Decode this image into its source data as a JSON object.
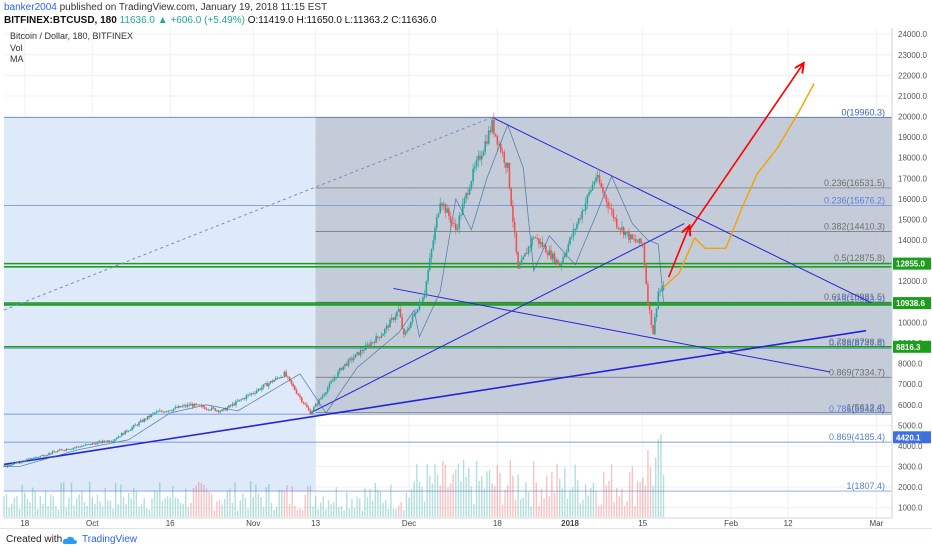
{
  "header": {
    "author": "banker2004",
    "published": "published on TradingView.com, January 19, 2018 11:15 EST",
    "symbol": "BITFINEX:BTCUSD, 180",
    "last": "11636.0",
    "change": "▲ +606.0 (+5.49%)",
    "o": "O:11419.0",
    "h": "H:11650.0",
    "l": "L:11363.2",
    "c": "C:11636.0"
  },
  "footer": {
    "created_with": "Created with",
    "brand": "TradingView",
    "logo_icon": "tradingview-cloud-icon"
  },
  "colors": {
    "candle_up": "#26a69a",
    "candle_down": "#ef5350",
    "trendline": "#2424d8",
    "fib_line": "#6e6e6e",
    "green_level": "#1b9e1b",
    "arrow": "#ff0000",
    "projection": "#f5a000",
    "shade_light": "#dce8fa",
    "shade_dark": "#b7bfcf"
  },
  "chart_data": {
    "type": "candlestick",
    "title": "Bitcoin / Dollar, 180, BITFINEX",
    "legend": [
      "Vol",
      "MA"
    ],
    "xaxis_ticks": [
      {
        "label": "18",
        "date": "2017-09-18"
      },
      {
        "label": "Oct",
        "date": "2017-10-01"
      },
      {
        "label": "16",
        "date": "2017-10-16"
      },
      {
        "label": "Nov",
        "date": "2017-11-01"
      },
      {
        "label": "13",
        "date": "2017-11-13"
      },
      {
        "label": "Dec",
        "date": "2017-12-01"
      },
      {
        "label": "18",
        "date": "2017-12-18"
      },
      {
        "label": "2018",
        "date": "2018-01-01"
      },
      {
        "label": "15",
        "date": "2018-01-15"
      },
      {
        "label": "Feb",
        "date": "2018-02-01"
      },
      {
        "label": "12",
        "date": "2018-02-12"
      },
      {
        "label": "Mar",
        "date": "2018-03-01"
      }
    ],
    "y_ticks": [
      24000,
      23000,
      22000,
      21000,
      20000,
      19000,
      18000,
      17000,
      16000,
      15000,
      14000,
      13000,
      12000,
      11000,
      10000,
      9000,
      8000,
      7000,
      6000,
      5000,
      4000,
      3000,
      2000,
      1000
    ],
    "ylim": [
      500,
      24300
    ],
    "price_path": [
      {
        "date": "2017-09-14",
        "price": 3000
      },
      {
        "date": "2017-09-25",
        "price": 3800
      },
      {
        "date": "2017-10-05",
        "price": 4300
      },
      {
        "date": "2017-10-13",
        "price": 5600
      },
      {
        "date": "2017-10-20",
        "price": 6000
      },
      {
        "date": "2017-10-26",
        "price": 5700
      },
      {
        "date": "2017-11-01",
        "price": 6600
      },
      {
        "date": "2017-11-07",
        "price": 7500
      },
      {
        "date": "2017-11-12",
        "price": 5600
      },
      {
        "date": "2017-11-18",
        "price": 7800
      },
      {
        "date": "2017-11-26",
        "price": 9500
      },
      {
        "date": "2017-11-29",
        "price": 10600
      },
      {
        "date": "2017-11-30",
        "price": 9300
      },
      {
        "date": "2017-12-04",
        "price": 11500
      },
      {
        "date": "2017-12-07",
        "price": 16000
      },
      {
        "date": "2017-12-10",
        "price": 14500
      },
      {
        "date": "2017-12-13",
        "price": 17000
      },
      {
        "date": "2017-12-17",
        "price": 19600
      },
      {
        "date": "2017-12-20",
        "price": 17500
      },
      {
        "date": "2017-12-22",
        "price": 12500
      },
      {
        "date": "2017-12-25",
        "price": 14200
      },
      {
        "date": "2017-12-30",
        "price": 12800
      },
      {
        "date": "2018-01-03",
        "price": 15200
      },
      {
        "date": "2018-01-06",
        "price": 17100
      },
      {
        "date": "2018-01-10",
        "price": 14800
      },
      {
        "date": "2018-01-13",
        "price": 14000
      },
      {
        "date": "2018-01-15",
        "price": 13800
      },
      {
        "date": "2018-01-16",
        "price": 11000
      },
      {
        "date": "2018-01-17",
        "price": 9500
      },
      {
        "date": "2018-01-18",
        "price": 11500
      },
      {
        "date": "2018-01-19",
        "price": 11636
      }
    ],
    "fib_levels": [
      {
        "label": "0(19960.3)",
        "price": 19960.3,
        "series": "A"
      },
      {
        "label": "0(19960.3)",
        "price": 19960.3,
        "series": "B"
      },
      {
        "label": "0.236(16531.5)",
        "price": 16531.5,
        "series": "A"
      },
      {
        "label": "0.236(15676.2)",
        "price": 15676.2,
        "series": "B"
      },
      {
        "label": "0.382(14410.3)",
        "price": 14410.3,
        "series": "A"
      },
      {
        "label": "0.5(12875.8)",
        "price": 12875.8,
        "series": "A"
      },
      {
        "label": "0.618(10981.5)",
        "price": 10981.5,
        "series": "A"
      },
      {
        "label": "0.5(10883.9)",
        "price": 10883.9,
        "series": "B"
      },
      {
        "label": "0.786(8798.8)",
        "price": 8798.8,
        "series": "A"
      },
      {
        "label": "0.618(8741.8)",
        "price": 8741.8,
        "series": "B"
      },
      {
        "label": "0.869(7334.7)",
        "price": 7334.7,
        "series": "A"
      },
      {
        "label": "1(5612.4)",
        "price": 5612.4,
        "series": "A"
      },
      {
        "label": "0.786(5543.8)",
        "price": 5543.8,
        "series": "B"
      },
      {
        "label": "0.869(4185.4)",
        "price": 4185.4,
        "series": "B"
      },
      {
        "label": "1(1807.4)",
        "price": 1807.4,
        "series": "B"
      }
    ],
    "price_labels": [
      {
        "label": "12855.0",
        "price": 12855.0
      },
      {
        "label": "10938.6",
        "price": 10938.6
      },
      {
        "label": "8816.3",
        "price": 8816.3
      },
      {
        "label": "4420.1",
        "price": 4420.1
      }
    ],
    "green_levels": [
      12855,
      12700,
      10938.6,
      10850,
      8816.3
    ],
    "trendlines": [
      {
        "name": "support-main",
        "from": {
          "date": "2017-09-14",
          "price": 3100
        },
        "to": {
          "date": "2018-02-27",
          "price": 9600
        }
      },
      {
        "name": "rising-from-nov",
        "from": {
          "date": "2017-11-12",
          "price": 5600
        },
        "to": {
          "date": "2018-01-23",
          "price": 14800
        }
      },
      {
        "name": "descending-from-ath",
        "from": {
          "date": "2017-12-17",
          "price": 19960
        },
        "to": {
          "date": "2018-02-28",
          "price": 10950
        }
      },
      {
        "name": "falling-channel",
        "from": {
          "date": "2017-11-28",
          "price": 11650
        },
        "to": {
          "date": "2018-02-20",
          "price": 7600
        }
      },
      {
        "name": "dashed-extension",
        "from": {
          "date": "2017-09-14",
          "price": 10600
        },
        "to": {
          "date": "2017-12-17",
          "price": 19960
        }
      }
    ],
    "forecast_arrows": [
      {
        "from": {
          "date": "2018-01-20",
          "price": 12200
        },
        "to": {
          "date": "2018-01-24",
          "price": 14700
        }
      },
      {
        "from": {
          "date": "2018-01-24",
          "price": 14500
        },
        "to": {
          "date": "2018-02-15",
          "price": 22600
        }
      }
    ],
    "projection_path": [
      {
        "date": "2018-01-19",
        "price": 11700
      },
      {
        "date": "2018-01-22",
        "price": 12400
      },
      {
        "date": "2018-01-25",
        "price": 14100
      },
      {
        "date": "2018-01-27",
        "price": 13600
      },
      {
        "date": "2018-01-31",
        "price": 13600
      },
      {
        "date": "2018-02-03",
        "price": 15500
      },
      {
        "date": "2018-02-06",
        "price": 17200
      },
      {
        "date": "2018-02-10",
        "price": 18500
      },
      {
        "date": "2018-02-14",
        "price": 20200
      },
      {
        "date": "2018-02-17",
        "price": 21600
      }
    ],
    "shaded_regions": [
      {
        "from": "2017-09-14",
        "to": "2017-11-13",
        "price_top": 19960,
        "price_bottom": 1807,
        "tone": "light"
      },
      {
        "from": "2017-11-13",
        "to": "2018-03-04",
        "price_top": 19960,
        "price_bottom": 5612,
        "tone": "dark"
      }
    ],
    "volume_profile": "higher during December and mid-January sell-off",
    "grid": true,
    "legend_position": "top-left"
  }
}
